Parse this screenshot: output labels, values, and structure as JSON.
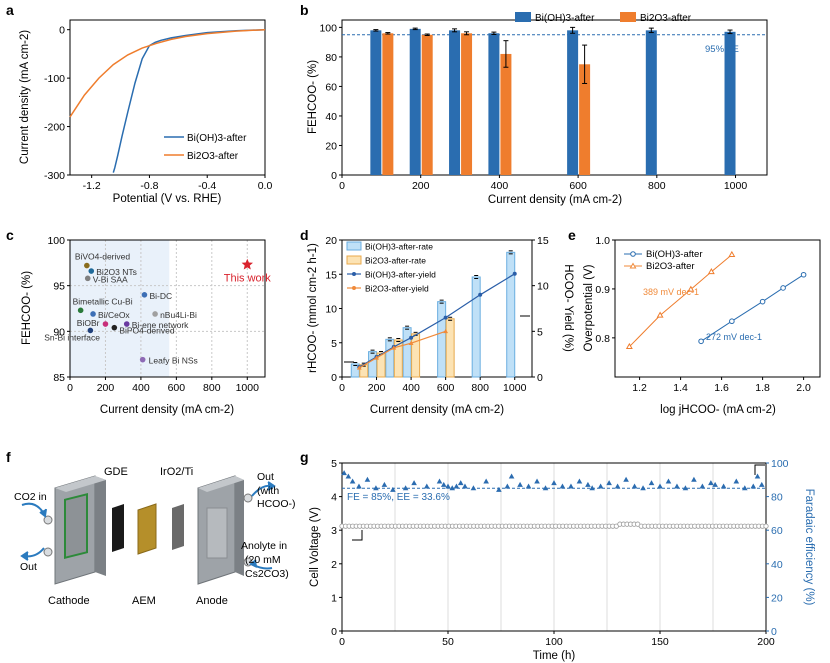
{
  "colors": {
    "bi_oh3": "#2a6db0",
    "bi2o3": "#ef7d2d",
    "rate_bi_oh3_fill": "#bfe0f7",
    "rate_bi_oh3_edge": "#6aaee0",
    "rate_bi2o3_fill": "#fce3b4",
    "rate_bi2o3_edge": "#e8a94c",
    "yield_bi_oh3": "#2a5ea8",
    "yield_bi2o3": "#f08a3a",
    "this_work": "#d9232d",
    "fe_point": "#2b6cb0",
    "voltage_point": "#9a9a9a",
    "grid": "#c8c8c8",
    "shade": "#e9f1fa"
  },
  "panel_labels": {
    "a": "a",
    "b": "b",
    "c": "c",
    "d": "d",
    "e": "e",
    "f": "f",
    "g": "g"
  },
  "panel_f": {
    "labels": {
      "gde": "GDE",
      "anode_catalyst": "IrO2/Ti",
      "co2_in": "CO2 in",
      "out_left": "Out",
      "out_right_1": "Out",
      "out_right_2": "(with",
      "out_right_3": "HCOO-)",
      "anolyte_1": "Anolyte in",
      "anolyte_2": "(20 mM",
      "anolyte_3": "Cs2CO3)",
      "cathode": "Cathode",
      "aem": "AEM",
      "anode": "Anode"
    },
    "icons": [
      "flow-cell-cathode-plate",
      "gas-diffusion-electrode",
      "anion-exchange-membrane",
      "iro2-ti-electrode",
      "flow-cell-anode-plate",
      "flow-arrow-icon"
    ]
  },
  "chart_data": [
    {
      "panel": "a",
      "type": "line",
      "xlabel": "Potential (V vs. RHE)",
      "ylabel": "Current density (mA cm-2)",
      "xlim": [
        -1.35,
        0.0
      ],
      "ylim": [
        -300,
        20
      ],
      "xticks": [
        -1.2,
        -0.8,
        -0.4,
        0.0
      ],
      "xtick_labels": [
        "-1.2",
        "-0.8",
        "-0.4",
        "0.0"
      ],
      "yticks": [
        -300,
        -200,
        -100,
        0
      ],
      "ytick_labels": [
        "-300",
        "-200",
        "-100",
        "0"
      ],
      "legend_position": "bottom-right",
      "series": [
        {
          "name": "Bi(OH)3-after",
          "x": [
            0.0,
            -0.2,
            -0.4,
            -0.55,
            -0.65,
            -0.72,
            -0.76,
            -0.8,
            -0.85,
            -0.9,
            -0.95,
            -0.99,
            -1.02,
            -1.04,
            -1.05
          ],
          "y": [
            0,
            -2,
            -6,
            -12,
            -17,
            -22,
            -26,
            -33,
            -60,
            -110,
            -170,
            -220,
            -260,
            -285,
            -295
          ]
        },
        {
          "name": "Bi2O3-after",
          "x": [
            0.0,
            -0.2,
            -0.4,
            -0.55,
            -0.65,
            -0.75,
            -0.85,
            -0.95,
            -1.05,
            -1.15,
            -1.25,
            -1.35
          ],
          "y": [
            0,
            -3,
            -8,
            -14,
            -20,
            -28,
            -38,
            -52,
            -72,
            -100,
            -135,
            -180
          ]
        }
      ]
    },
    {
      "panel": "b",
      "type": "bar",
      "xlabel": "Current density (mA cm-2)",
      "ylabel": "FEHCOO- (%)",
      "xlim": [
        0,
        1080
      ],
      "ylim": [
        0,
        105
      ],
      "xticks": [
        0,
        200,
        400,
        600,
        800,
        1000
      ],
      "xtick_labels": [
        "0",
        "200",
        "400",
        "600",
        "800",
        "1000"
      ],
      "yticks": [
        0,
        20,
        40,
        60,
        80,
        100
      ],
      "ytick_labels": [
        "0",
        "20",
        "40",
        "60",
        "80",
        "100"
      ],
      "legend_position": "top",
      "reference_line": {
        "value": 95,
        "label": "95% FE"
      },
      "x": [
        100,
        200,
        300,
        400,
        600,
        800,
        1000
      ],
      "series": [
        {
          "name": "Bi(OH)3-after",
          "values": [
            98,
            99,
            98,
            96,
            98,
            98,
            97
          ],
          "errors": [
            0.5,
            0.5,
            1.0,
            0.8,
            2.0,
            1.5,
            1.2
          ]
        },
        {
          "name": "Bi2O3-after",
          "values": [
            96,
            95,
            96,
            82,
            75,
            null,
            null
          ],
          "errors": [
            0.5,
            0.5,
            1.0,
            9,
            13,
            null,
            null
          ]
        }
      ]
    },
    {
      "panel": "c",
      "type": "scatter",
      "xlabel": "Current density (mA cm-2)",
      "ylabel": "FEHCOO- (%)",
      "xlim": [
        0,
        1100
      ],
      "ylim": [
        85,
        100
      ],
      "xticks": [
        0,
        200,
        400,
        600,
        800,
        1000
      ],
      "xtick_labels": [
        "0",
        "200",
        "400",
        "600",
        "800",
        "1000"
      ],
      "yticks": [
        85,
        90,
        95,
        100
      ],
      "ytick_labels": [
        "85",
        "90",
        "95",
        "100"
      ],
      "grid": true,
      "points": [
        {
          "label": "BiVO4-derived",
          "x": 95,
          "y": 97.2,
          "color": "#8a6d1e"
        },
        {
          "label": "Bi2O3 NTs",
          "x": 120,
          "y": 96.6,
          "color": "#1f6a9a"
        },
        {
          "label": "V-Bi SAA",
          "x": 100,
          "y": 95.8,
          "color": "#808080"
        },
        {
          "label": "Bi-DC",
          "x": 420,
          "y": 94.0,
          "color": "#3d6fb5"
        },
        {
          "label": "Bimetallic Cu-Bi",
          "x": 60,
          "y": 92.3,
          "color": "#2a7a3a"
        },
        {
          "label": "Bi/CeOx",
          "x": 130,
          "y": 91.9,
          "color": "#3d6fb5"
        },
        {
          "label": "nBu4Li-Bi",
          "x": 480,
          "y": 91.9,
          "color": "#a0a0a0"
        },
        {
          "label": "BiOBr",
          "x": 200,
          "y": 90.8,
          "color": "#c82f7a"
        },
        {
          "label": "Bi-ene network",
          "x": 320,
          "y": 90.8,
          "color": "#6a3aa0"
        },
        {
          "label": "BiPO4-derived",
          "x": 250,
          "y": 90.4,
          "color": "#222222"
        },
        {
          "label": "Sn-Bi interface",
          "x": 115,
          "y": 90.1,
          "color": "#1f3f7a"
        },
        {
          "label": "Leafy Bi NSs",
          "x": 410,
          "y": 86.9,
          "color": "#8e6ab5"
        },
        {
          "label": "This work",
          "x": 1000,
          "y": 97.3,
          "color": "#d9232d"
        }
      ]
    },
    {
      "panel": "d",
      "type": "bar",
      "xlabel": "Current density (mA cm-2)",
      "ylabel": "rHCOO- (mmol cm-2 h-1)",
      "ylabel_right": "HCOO- Yield (%)",
      "xlim": [
        0,
        1100
      ],
      "ylim": [
        0,
        20
      ],
      "ylim_right": [
        0,
        15
      ],
      "xticks": [
        0,
        200,
        400,
        600,
        800,
        1000
      ],
      "xtick_labels": [
        "0",
        "200",
        "400",
        "600",
        "800",
        "1000"
      ],
      "yticks": [
        0,
        5,
        10,
        15,
        20
      ],
      "ytick_labels": [
        "0",
        "5",
        "10",
        "15",
        "20"
      ],
      "yticks_right": [
        0,
        5,
        10,
        15
      ],
      "ytick_labels_right": [
        "0",
        "5",
        "10",
        "15"
      ],
      "legend_position": "top-left",
      "x": [
        100,
        200,
        300,
        400,
        600,
        800,
        1000
      ],
      "series": [
        {
          "name": "Bi(OH)3-after-rate",
          "values": [
            1.9,
            3.7,
            5.5,
            7.2,
            11.0,
            14.6,
            18.2
          ]
        },
        {
          "name": "Bi2O3-after-rate",
          "values": [
            1.8,
            3.5,
            5.4,
            6.3,
            8.5,
            null,
            null
          ]
        },
        {
          "name": "Bi(OH)3-after-yield",
          "values": [
            1.1,
            2.2,
            3.3,
            4.3,
            6.5,
            9.0,
            11.3
          ]
        },
        {
          "name": "Bi2O3-after-yield",
          "values": [
            1.0,
            2.1,
            3.2,
            3.7,
            5.0,
            null,
            null
          ]
        }
      ]
    },
    {
      "panel": "e",
      "type": "line",
      "xlabel": "log jHCOO- (mA cm-2)",
      "ylabel": "Overpotential (V)",
      "xlim": [
        1.08,
        2.08
      ],
      "ylim": [
        0.72,
        1.0
      ],
      "xticks": [
        1.2,
        1.4,
        1.6,
        1.8,
        2.0
      ],
      "xtick_labels": [
        "1.2",
        "1.4",
        "1.6",
        "1.8",
        "2.0"
      ],
      "yticks": [
        0.8,
        0.9,
        1.0
      ],
      "ytick_labels": [
        "0.8",
        "0.9",
        "1.0"
      ],
      "legend_position": "top-left",
      "series": [
        {
          "name": "Bi(OH)3-after",
          "slope_label": "272 mV dec-1",
          "x": [
            1.5,
            1.65,
            1.8,
            1.9,
            2.0
          ],
          "y": [
            0.793,
            0.834,
            0.874,
            0.902,
            0.929
          ]
        },
        {
          "name": "Bi2O3-after",
          "slope_label": "389 mV dec-1",
          "x": [
            1.15,
            1.3,
            1.45,
            1.55,
            1.65
          ],
          "y": [
            0.782,
            0.846,
            0.899,
            0.935,
            0.97
          ]
        }
      ]
    },
    {
      "panel": "g",
      "type": "scatter",
      "xlabel": "Time (h)",
      "ylabel": "Cell Voltage (V)",
      "ylabel_right": "Faradaic efficiency (%)",
      "xlim": [
        0,
        200
      ],
      "ylim": [
        0,
        5
      ],
      "ylim_right": [
        0,
        100
      ],
      "xticks": [
        0,
        50,
        100,
        150,
        200
      ],
      "xtick_labels": [
        "0",
        "50",
        "100",
        "150",
        "200"
      ],
      "yticks": [
        0,
        1,
        2,
        3,
        4,
        5
      ],
      "ytick_labels": [
        "0",
        "1",
        "2",
        "3",
        "4",
        "5"
      ],
      "yticks_right": [
        0,
        20,
        40,
        60,
        80,
        100
      ],
      "ytick_labels_right": [
        "0",
        "20",
        "40",
        "60",
        "80",
        "100"
      ],
      "annotation": "FE = 85%, EE = 33.6%",
      "reference_line_right": 85,
      "series": [
        {
          "name": "Cell voltage",
          "x_start": 0,
          "x_end": 200,
          "count": 120,
          "level": 3.12,
          "bump": {
            "x": [
              130,
              140
            ],
            "value": 3.18
          }
        },
        {
          "name": "FE",
          "x": [
            1,
            3,
            5,
            8,
            12,
            16,
            20,
            24,
            30,
            34,
            40,
            46,
            48,
            50,
            52,
            54,
            56,
            58,
            62,
            68,
            74,
            78,
            80,
            84,
            88,
            92,
            96,
            100,
            104,
            108,
            112,
            116,
            118,
            122,
            126,
            130,
            134,
            138,
            142,
            146,
            150,
            154,
            158,
            162,
            166,
            170,
            174,
            176,
            180,
            186,
            190,
            194,
            196,
            198
          ],
          "y": [
            94,
            92,
            89,
            86,
            90,
            85,
            87,
            84,
            85,
            88,
            86,
            89,
            87,
            86,
            85,
            86,
            88,
            86,
            85,
            89,
            84,
            86,
            92,
            87,
            86,
            89,
            85,
            88,
            86,
            86,
            89,
            87,
            85,
            86,
            88,
            86,
            90,
            86,
            85,
            88,
            86,
            89,
            86,
            85,
            90,
            86,
            88,
            87,
            86,
            89,
            85,
            86,
            92,
            87
          ]
        }
      ]
    }
  ]
}
